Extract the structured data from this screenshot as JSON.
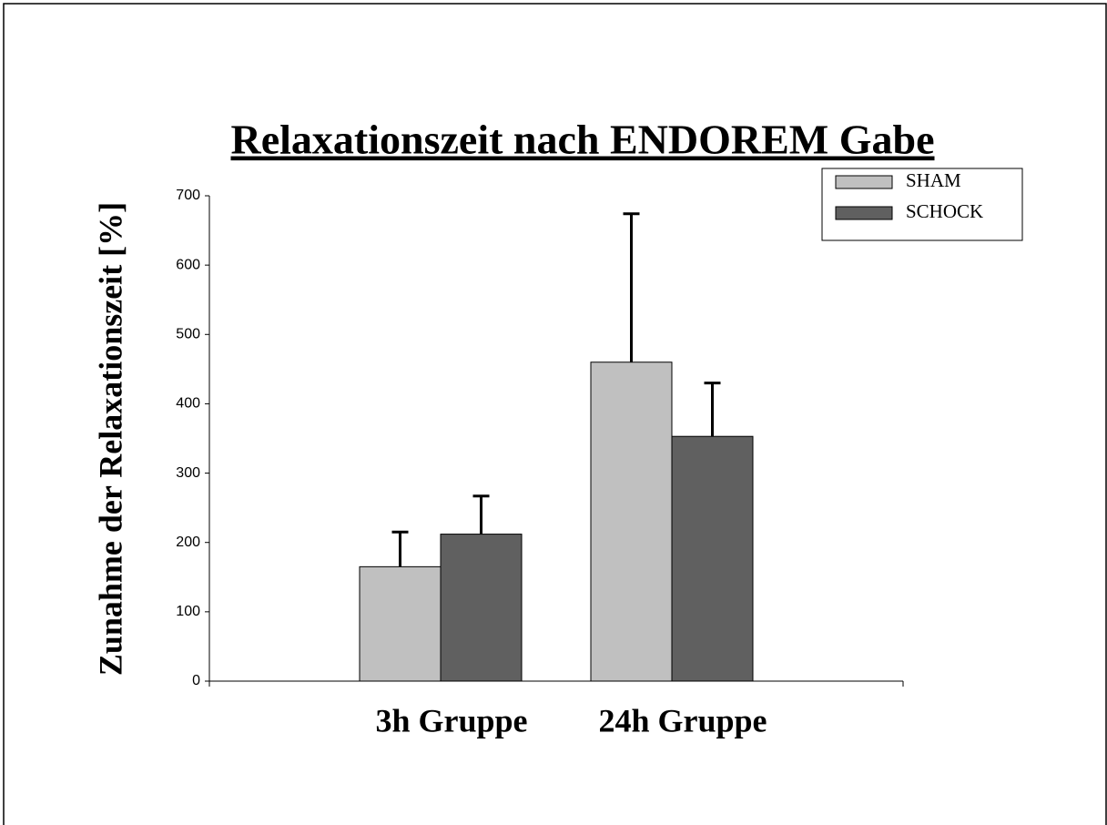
{
  "chart_data": {
    "type": "bar",
    "title": "Relaxationszeit nach ENDOREM Gabe",
    "y_label": "Zunahme der Relaxationszeit [%]",
    "categories": [
      "3h Gruppe",
      "24h Gruppe"
    ],
    "series": [
      {
        "name": "SHAM",
        "color": "#c0c0c0",
        "values": [
          165,
          460
        ],
        "errors": [
          50,
          214
        ]
      },
      {
        "name": "SCHOCK",
        "color": "#606060",
        "values": [
          212,
          353
        ],
        "errors": [
          55,
          77
        ]
      }
    ],
    "ylim": [
      0,
      700
    ],
    "yticks": [
      0,
      100,
      200,
      300,
      400,
      500,
      600,
      700
    ],
    "grid": false,
    "legend": "upper right"
  }
}
